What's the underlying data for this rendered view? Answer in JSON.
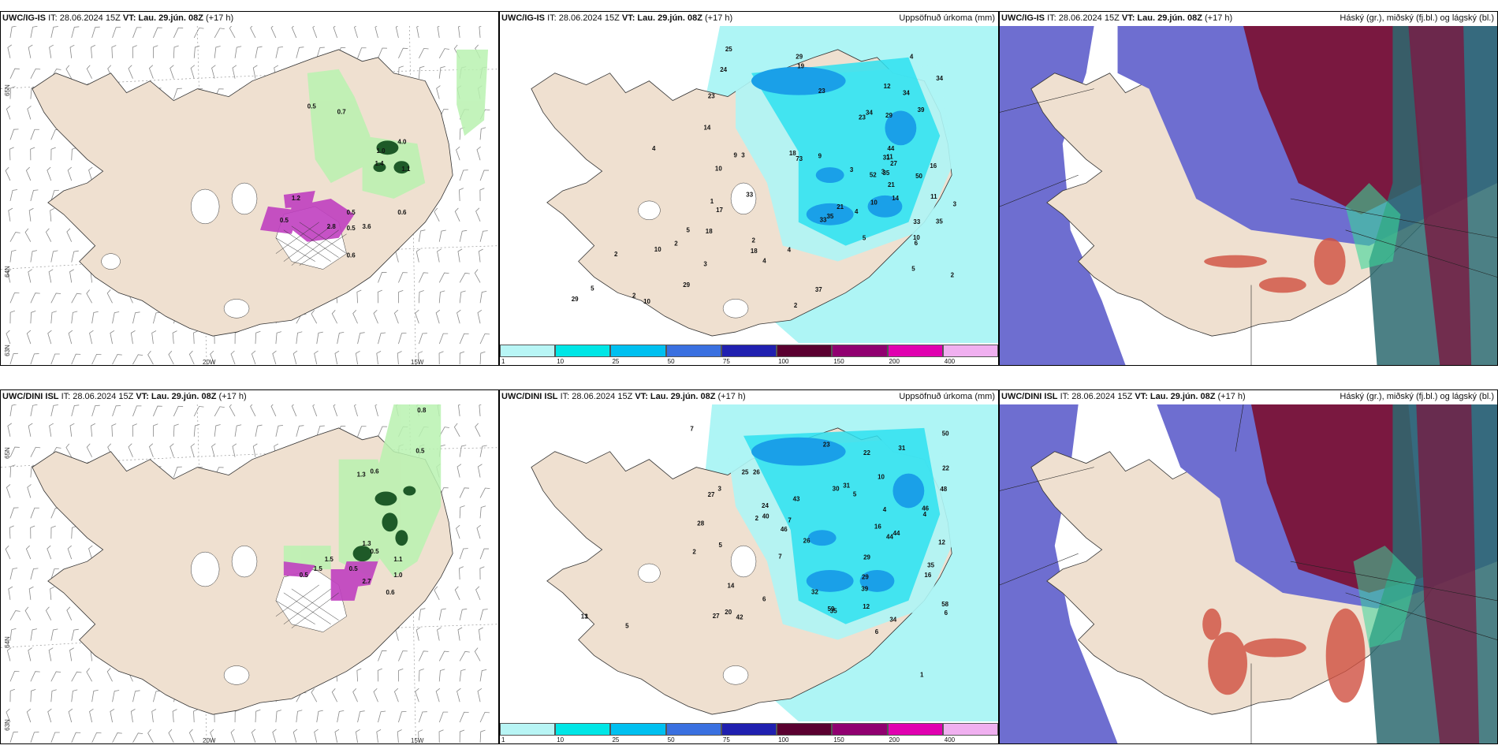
{
  "panels": [
    {
      "model": "UWC/IG-IS",
      "it": "IT: 28.06.2024 15Z",
      "vt_label": "VT:",
      "vt": "Lau. 29.jún. 08Z",
      "lead": "(+17 h)",
      "right": ""
    },
    {
      "model": "UWC/IG-IS",
      "it": "IT: 28.06.2024 15Z",
      "vt_label": "VT:",
      "vt": "Lau. 29.jún. 08Z",
      "lead": "(+17 h)",
      "right": "Uppsöfnuð úrkoma (mm)"
    },
    {
      "model": "UWC/IG-IS",
      "it": "IT: 28.06.2024 15Z",
      "vt_label": "VT:",
      "vt": "Lau. 29.jún. 08Z",
      "lead": "(+17 h)",
      "right": "Háský (gr.), miðský (fj.bl.) og lágský (bl.)"
    },
    {
      "model": "UWC/DINI ISL",
      "it": "IT: 28.06.2024 15Z",
      "vt_label": "VT:",
      "vt": "Lau. 29.jún. 08Z",
      "lead": "(+17 h)",
      "right": ""
    },
    {
      "model": "UWC/DINI ISL",
      "it": "IT: 28.06.2024 15Z",
      "vt_label": "VT:",
      "vt": "Lau. 29.jún. 08Z",
      "lead": "(+17 h)",
      "right": "Uppsöfnuð úrkoma (mm)"
    },
    {
      "model": "UWC/DINI ISL",
      "it": "IT: 28.06.2024 15Z",
      "vt_label": "VT:",
      "vt": "Lau. 29.jún. 08Z",
      "lead": "(+17 h)",
      "right": "Háský (gr.), miðský (fj.bl.) og lágský (bl.)"
    }
  ],
  "axis": {
    "lat65": "65N",
    "lat64": "64N",
    "lat63": "63N",
    "lon20": "20W",
    "lon15": "15W"
  },
  "colorbar": {
    "labels": [
      "1",
      "10",
      "25",
      "50",
      "75",
      "100",
      "150",
      "200",
      "400"
    ],
    "colors": [
      "#b8f5f5",
      "#00e6e6",
      "#00c0f0",
      "#3a70e0",
      "#2020b0",
      "#5a0030",
      "#900070",
      "#e000b0",
      "#f0b0f0"
    ]
  },
  "colors": {
    "land": "#efe0d0",
    "cyan_light": "#aef5f5",
    "cyan": "#2ee0f0",
    "blue": "#1aa0e8",
    "purple": "#6e6ed0",
    "maroon": "#7a1840",
    "green_light": "#b9f2b0",
    "green_dark": "#1e5a28",
    "magenta": "#c040c0"
  },
  "wind_top": {
    "labels": [
      "0.5",
      "0.7",
      "1.0",
      "1.4",
      "1.2",
      "4.0",
      "0.5",
      "1.1",
      "0.5",
      "2.8",
      "0.6",
      "0.5",
      "3.6",
      "0.6"
    ]
  },
  "wind_bottom": {
    "labels": [
      "0.8",
      "0.5",
      "1.3",
      "0.6",
      "1.3",
      "0.5",
      "0.5",
      "1.5",
      "0.5",
      "1.1",
      "2.7",
      "1.0",
      "0.6",
      "1.5"
    ]
  },
  "precip_top": {
    "labels": [
      "24",
      "29",
      "23",
      "14",
      "12",
      "11",
      "9",
      "18",
      "19",
      "39",
      "31",
      "34",
      "35",
      "14",
      "33",
      "50",
      "73",
      "9",
      "18",
      "10",
      "10",
      "34",
      "16",
      "52",
      "33",
      "17",
      "11",
      "3",
      "21",
      "25",
      "27",
      "34",
      "23",
      "35",
      "4",
      "2",
      "3",
      "44",
      "33",
      "29",
      "23",
      "21",
      "6",
      "3",
      "5",
      "10",
      "29",
      "35",
      "37",
      "4",
      "2",
      "2",
      "5",
      "3",
      "29",
      "4",
      "10",
      "2",
      "4",
      "2",
      "1",
      "5",
      "2",
      "3",
      "18",
      "4",
      "5",
      "10"
    ]
  },
  "precip_bottom": {
    "labels": [
      "25",
      "35",
      "31",
      "50",
      "35",
      "32",
      "23",
      "42",
      "39",
      "44",
      "27",
      "34",
      "44",
      "43",
      "28",
      "16",
      "29",
      "20",
      "48",
      "24",
      "22",
      "40",
      "29",
      "26",
      "22",
      "16",
      "46",
      "30",
      "27",
      "14",
      "12",
      "59",
      "31",
      "46",
      "58",
      "26",
      "10",
      "5",
      "4",
      "5",
      "2",
      "3",
      "7",
      "7",
      "4",
      "12",
      "2",
      "1",
      "1",
      "6",
      "5",
      "6",
      "7",
      "6",
      "13"
    ]
  }
}
